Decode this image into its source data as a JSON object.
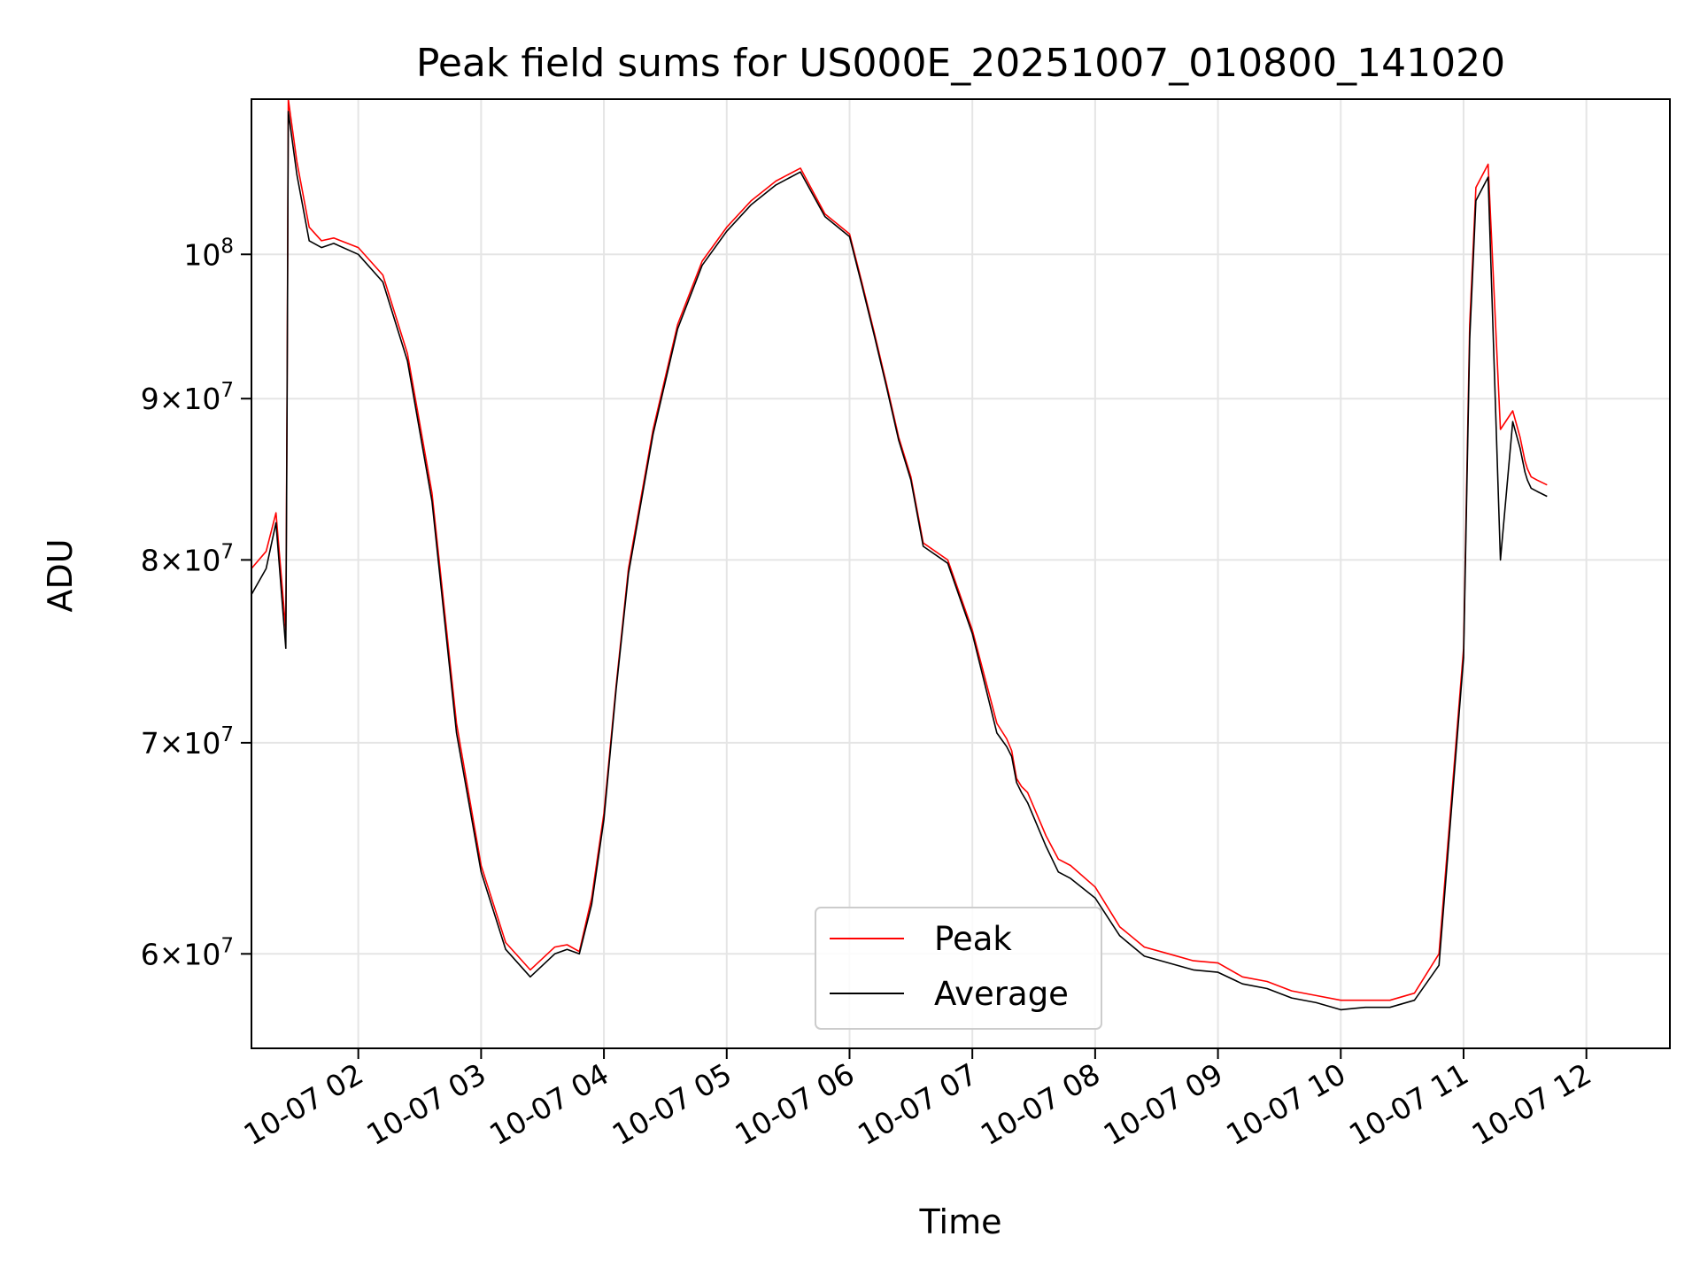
{
  "chart_data": {
    "type": "line",
    "title": "Peak field sums for US000E_20251007_010800_141020",
    "xlabel": "Time",
    "ylabel": "ADU",
    "yscale": "log",
    "ylim": [
      56000000,
      112000000
    ],
    "xlim": [
      1.13,
      12.68
    ],
    "grid": true,
    "legend_location": "lower-center",
    "x_ticks": [
      {
        "value": 2,
        "label": "10-07 02"
      },
      {
        "value": 3,
        "label": "10-07 03"
      },
      {
        "value": 4,
        "label": "10-07 04"
      },
      {
        "value": 5,
        "label": "10-07 05"
      },
      {
        "value": 6,
        "label": "10-07 06"
      },
      {
        "value": 7,
        "label": "10-07 07"
      },
      {
        "value": 8,
        "label": "10-07 08"
      },
      {
        "value": 9,
        "label": "10-07 09"
      },
      {
        "value": 10,
        "label": "10-07 10"
      },
      {
        "value": 11,
        "label": "10-07 11"
      },
      {
        "value": 12,
        "label": "10-07 12"
      }
    ],
    "y_ticks": [
      {
        "value": 60000000,
        "mantissa": "6",
        "exp": "7",
        "kind": "mant"
      },
      {
        "value": 70000000,
        "mantissa": "7",
        "exp": "7",
        "kind": "mant"
      },
      {
        "value": 80000000,
        "mantissa": "8",
        "exp": "7",
        "kind": "mant"
      },
      {
        "value": 90000000,
        "mantissa": "9",
        "exp": "7",
        "kind": "mant"
      },
      {
        "value": 100000000,
        "base": "10",
        "exp": "8",
        "kind": "pow"
      }
    ],
    "series": [
      {
        "name": "Peak",
        "color": "#ff0000",
        "x": [
          1.13,
          1.25,
          1.33,
          1.41,
          1.42,
          1.43,
          1.5,
          1.6,
          1.7,
          1.8,
          2.0,
          2.2,
          2.4,
          2.6,
          2.8,
          3.0,
          3.2,
          3.4,
          3.6,
          3.7,
          3.8,
          3.9,
          4.0,
          4.1,
          4.2,
          4.4,
          4.6,
          4.8,
          5.0,
          5.2,
          5.4,
          5.6,
          5.8,
          6.0,
          6.1,
          6.2,
          6.3,
          6.4,
          6.5,
          6.6,
          6.8,
          7.0,
          7.2,
          7.28,
          7.32,
          7.36,
          7.4,
          7.45,
          7.5,
          7.6,
          7.7,
          7.8,
          8.0,
          8.2,
          8.4,
          8.6,
          8.8,
          9.0,
          9.2,
          9.4,
          9.6,
          9.8,
          10.0,
          10.2,
          10.4,
          10.6,
          10.8,
          11.0,
          11.05,
          11.1,
          11.2,
          11.3,
          11.4,
          11.46,
          11.5,
          11.52,
          11.55,
          11.6,
          11.68
        ],
        "values": [
          79500000,
          80500000,
          82800000,
          76000000,
          90000000,
          112000000,
          107000000,
          102000000,
          101000000,
          101200000,
          100500000,
          98500000,
          93000000,
          84000000,
          71000000,
          64000000,
          60500000,
          59300000,
          60300000,
          60400000,
          60100000,
          62500000,
          66500000,
          73000000,
          79500000,
          88000000,
          95000000,
          99500000,
          102000000,
          104000000,
          105500000,
          106500000,
          103000000,
          101500000,
          98000000,
          94500000,
          91000000,
          87500000,
          85000000,
          81000000,
          80000000,
          76000000,
          71000000,
          70200000,
          69600000,
          68200000,
          67800000,
          67500000,
          66800000,
          65400000,
          64300000,
          64000000,
          63000000,
          61200000,
          60300000,
          60000000,
          59700000,
          59600000,
          59000000,
          58800000,
          58400000,
          58200000,
          58000000,
          58000000,
          58000000,
          58300000,
          60000000,
          75000000,
          95000000,
          105000000,
          106800000,
          88000000,
          89200000,
          87500000,
          86000000,
          85500000,
          85000000,
          84800000,
          84500000
        ]
      },
      {
        "name": "Average",
        "color": "#000000",
        "x": [
          1.13,
          1.25,
          1.33,
          1.41,
          1.42,
          1.43,
          1.5,
          1.6,
          1.7,
          1.8,
          2.0,
          2.2,
          2.4,
          2.6,
          2.8,
          3.0,
          3.2,
          3.4,
          3.6,
          3.7,
          3.8,
          3.9,
          4.0,
          4.1,
          4.2,
          4.4,
          4.6,
          4.8,
          5.0,
          5.2,
          5.4,
          5.6,
          5.8,
          6.0,
          6.1,
          6.2,
          6.3,
          6.4,
          6.5,
          6.6,
          6.8,
          7.0,
          7.2,
          7.28,
          7.32,
          7.36,
          7.4,
          7.45,
          7.5,
          7.6,
          7.7,
          7.8,
          8.0,
          8.2,
          8.4,
          8.6,
          8.8,
          9.0,
          9.2,
          9.4,
          9.6,
          9.8,
          10.0,
          10.2,
          10.4,
          10.6,
          10.8,
          11.0,
          11.05,
          11.1,
          11.2,
          11.3,
          11.4,
          11.46,
          11.5,
          11.52,
          11.55,
          11.6,
          11.68
        ],
        "values": [
          78000000,
          79500000,
          82200000,
          75000000,
          89000000,
          111000000,
          106000000,
          101000000,
          100500000,
          100800000,
          100000000,
          98000000,
          92500000,
          83500000,
          70500000,
          63700000,
          60200000,
          59000000,
          60000000,
          60200000,
          60000000,
          62200000,
          66200000,
          72800000,
          79200000,
          87700000,
          94700000,
          99200000,
          101700000,
          103700000,
          105200000,
          106200000,
          102800000,
          101300000,
          97800000,
          94300000,
          90800000,
          87300000,
          84800000,
          80800000,
          79800000,
          75800000,
          70500000,
          69800000,
          69300000,
          68000000,
          67500000,
          67000000,
          66300000,
          64900000,
          63700000,
          63400000,
          62500000,
          60800000,
          59900000,
          59600000,
          59300000,
          59200000,
          58700000,
          58500000,
          58100000,
          57900000,
          57600000,
          57700000,
          57700000,
          58000000,
          59500000,
          74500000,
          94000000,
          104000000,
          105800000,
          80000000,
          88500000,
          86800000,
          85300000,
          84800000,
          84300000,
          84100000,
          83800000
        ]
      }
    ]
  }
}
